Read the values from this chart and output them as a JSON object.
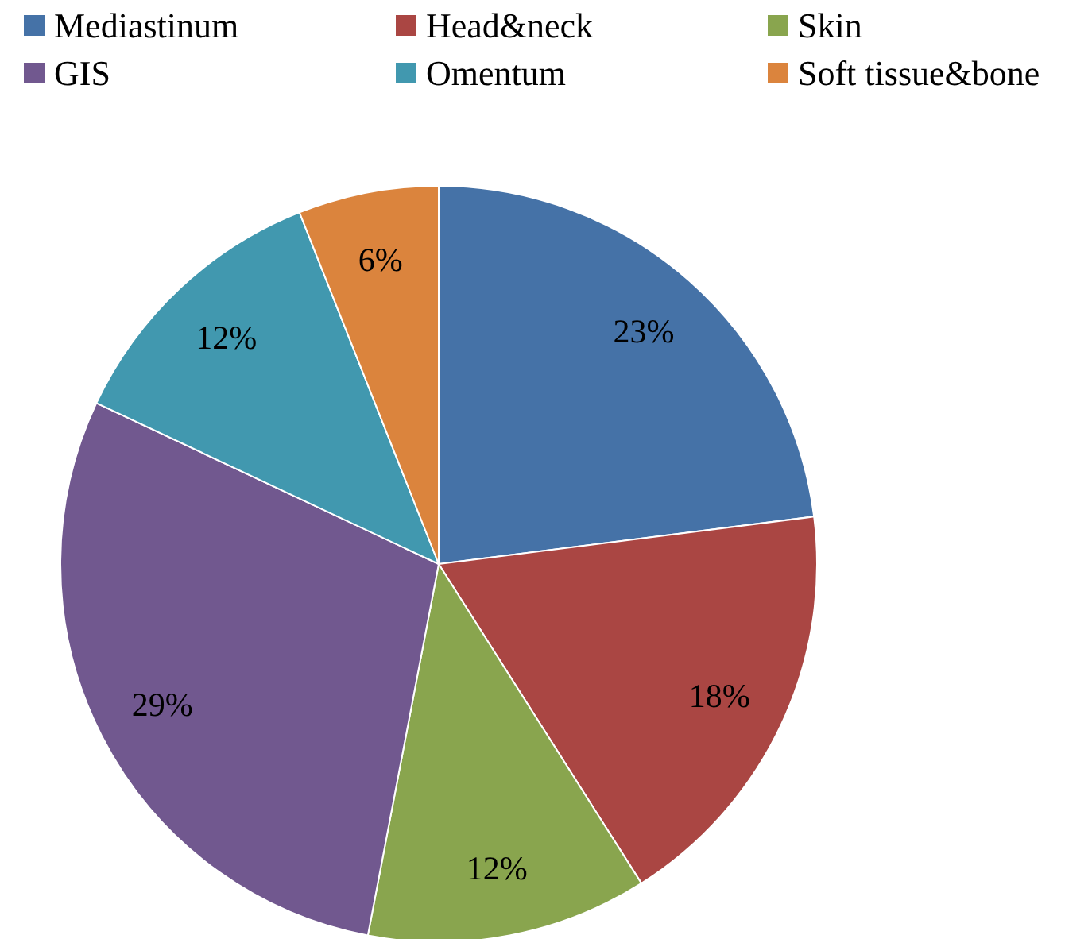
{
  "chart_data": {
    "type": "pie",
    "categories": [
      "Mediastinum",
      "Head&neck",
      "Skin",
      "GIS",
      "Omentum",
      "Soft tissue&bone"
    ],
    "values": [
      23,
      18,
      12,
      29,
      12,
      6
    ],
    "colors": [
      "#4572a7",
      "#aa4643",
      "#89a54e",
      "#71588f",
      "#4198af",
      "#db843d"
    ],
    "value_labels": [
      "23%",
      "18%",
      "12%",
      "29%",
      "12%",
      "6%"
    ],
    "legend": "top"
  }
}
